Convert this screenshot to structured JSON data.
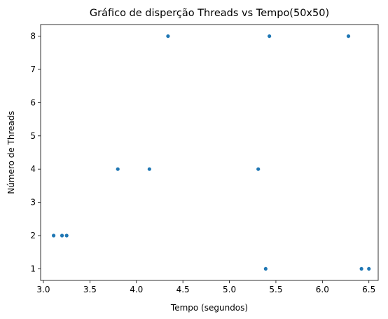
{
  "chart_data": {
    "type": "scatter",
    "title": "Gráfico de disperção Threads vs Tempo(50x50)",
    "xlabel": "Tempo (segundos)",
    "ylabel": "Número de Threads",
    "xlim": [
      2.97,
      6.6
    ],
    "ylim": [
      0.65,
      8.35
    ],
    "xticks": [
      3.0,
      3.5,
      4.0,
      4.5,
      5.0,
      5.5,
      6.0,
      6.5
    ],
    "xtick_labels": [
      "3.0",
      "3.5",
      "4.0",
      "4.5",
      "5.0",
      "5.5",
      "6.0",
      "6.5"
    ],
    "yticks": [
      1,
      2,
      3,
      4,
      5,
      6,
      7,
      8
    ],
    "ytick_labels": [
      "1",
      "2",
      "3",
      "4",
      "5",
      "6",
      "7",
      "8"
    ],
    "grid": false,
    "marker_color": "#1f77b4",
    "series": [
      {
        "points": [
          {
            "x": 3.11,
            "y": 2
          },
          {
            "x": 3.2,
            "y": 2
          },
          {
            "x": 3.25,
            "y": 2
          },
          {
            "x": 3.8,
            "y": 4
          },
          {
            "x": 4.14,
            "y": 4
          },
          {
            "x": 4.34,
            "y": 8
          },
          {
            "x": 5.31,
            "y": 4
          },
          {
            "x": 5.39,
            "y": 1
          },
          {
            "x": 5.43,
            "y": 8
          },
          {
            "x": 6.28,
            "y": 8
          },
          {
            "x": 6.42,
            "y": 1
          },
          {
            "x": 6.5,
            "y": 1
          }
        ]
      }
    ]
  }
}
